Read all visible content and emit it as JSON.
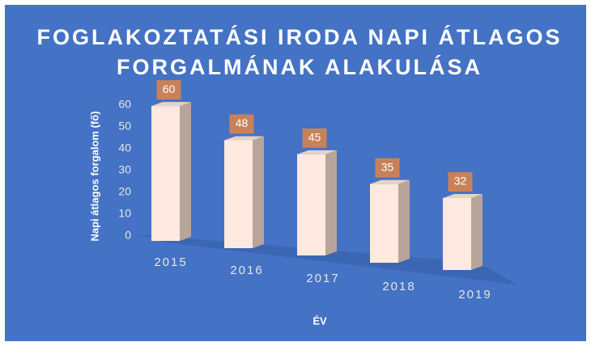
{
  "chart_data": {
    "type": "bar3d",
    "title": [
      "FOGLAKOZTATÁSI IRODA NAPI ÁTLAGOS",
      "FORGALMÁNAK ALAKULÁSA"
    ],
    "x_label": "ÉV",
    "y_label": "Napi átlagos forgalom (fő)",
    "categories": [
      "2015",
      "2016",
      "2017",
      "2018",
      "2019"
    ],
    "values": [
      60,
      48,
      45,
      35,
      32
    ],
    "color": "#fde9df",
    "label_color": "#c8825b",
    "ylim": [
      0,
      60
    ],
    "yticks": [
      0,
      10,
      20,
      30,
      40,
      50,
      60
    ]
  }
}
